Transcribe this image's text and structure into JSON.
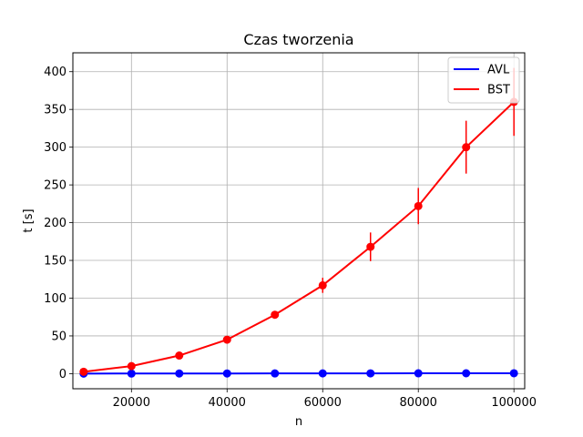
{
  "chart_data": {
    "type": "line",
    "title": "Czas tworzenia",
    "xlabel": "n",
    "ylabel": "t [s]",
    "xlim": [
      7750,
      102250
    ],
    "ylim": [
      -20,
      425
    ],
    "grid": true,
    "legend_position": "top-right",
    "x_ticks": [
      20000,
      40000,
      60000,
      80000,
      100000
    ],
    "x_tick_labels": [
      "20000",
      "40000",
      "60000",
      "80000",
      "100000"
    ],
    "y_ticks": [
      0,
      50,
      100,
      150,
      200,
      250,
      300,
      350,
      400
    ],
    "y_tick_labels": [
      "0",
      "50",
      "100",
      "150",
      "200",
      "250",
      "300",
      "350",
      "400"
    ],
    "series": [
      {
        "name": "AVL",
        "color": "#0000ff",
        "x": [
          10000,
          20000,
          30000,
          40000,
          50000,
          60000,
          70000,
          80000,
          90000,
          100000
        ],
        "y": [
          0.1,
          0.15,
          0.2,
          0.25,
          0.3,
          0.35,
          0.4,
          0.45,
          0.5,
          0.55
        ],
        "error": [
          0,
          0,
          0,
          0,
          0,
          0,
          0,
          0,
          0,
          0
        ]
      },
      {
        "name": "BST",
        "color": "#ff0000",
        "x": [
          10000,
          20000,
          30000,
          40000,
          50000,
          60000,
          70000,
          80000,
          90000,
          100000
        ],
        "y": [
          2.5,
          10,
          24,
          45,
          78,
          117,
          168,
          222,
          300,
          360
        ],
        "error": [
          1,
          1.5,
          2,
          2,
          3,
          10,
          19,
          24,
          35,
          45
        ]
      }
    ]
  }
}
